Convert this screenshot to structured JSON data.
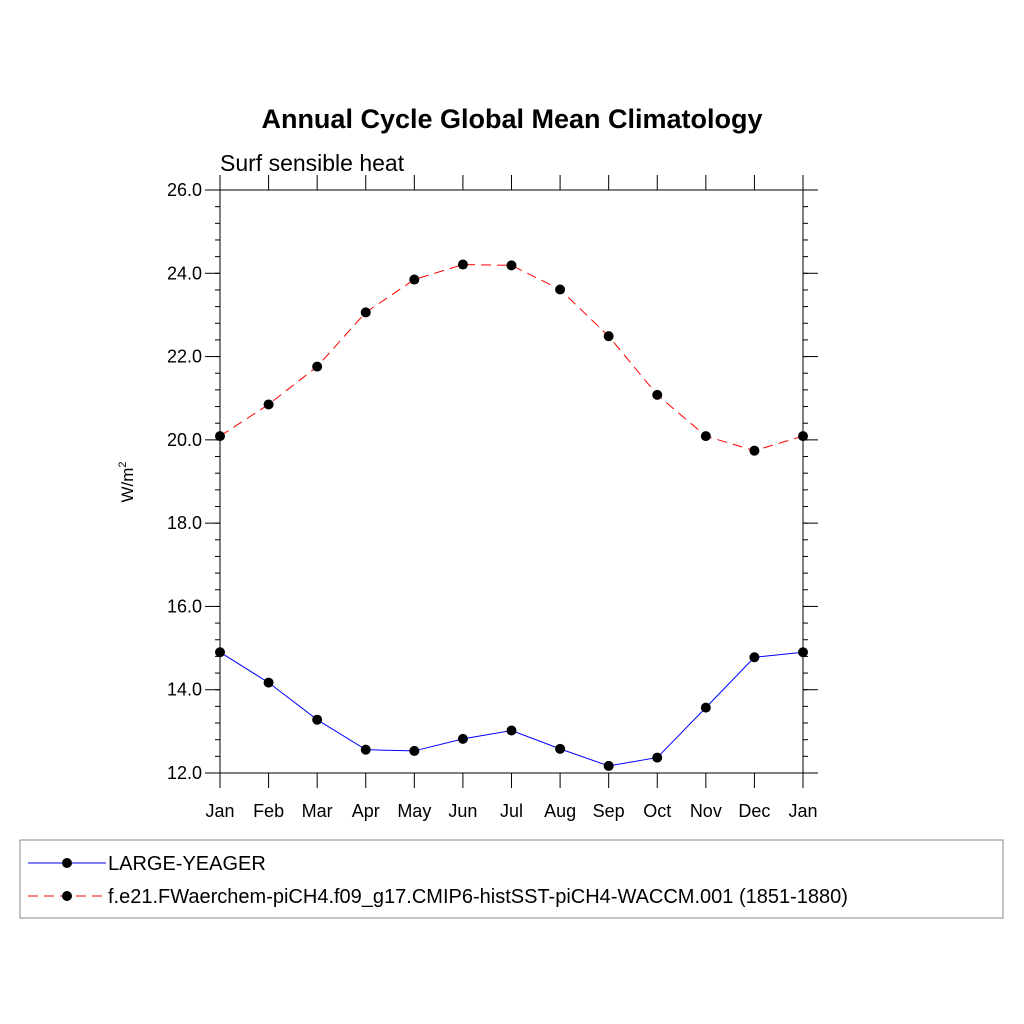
{
  "chart_data": {
    "type": "line",
    "title": "Annual Cycle Global Mean Climatology",
    "subtitle": "Surf sensible heat",
    "xlabel": "",
    "ylabel": "W/m",
    "ylabel_superscript": "2",
    "categories": [
      "Jan",
      "Feb",
      "Mar",
      "Apr",
      "May",
      "Jun",
      "Jul",
      "Aug",
      "Sep",
      "Oct",
      "Nov",
      "Dec",
      "Jan"
    ],
    "ylim": [
      12.0,
      26.0
    ],
    "y_major_ticks": [
      12.0,
      14.0,
      16.0,
      18.0,
      20.0,
      22.0,
      24.0,
      26.0
    ],
    "y_tick_labels": [
      "12.0",
      "14.0",
      "16.0",
      "18.0",
      "20.0",
      "22.0",
      "24.0",
      "26.0"
    ],
    "y_minor_step": 0.4,
    "grid": false,
    "legend_position": "bottom",
    "series": [
      {
        "name": "LARGE-YEAGER",
        "color": "#0000ff",
        "line_style": "solid",
        "marker": "filled-circle",
        "values": [
          14.9,
          14.17,
          13.28,
          12.56,
          12.53,
          12.82,
          13.02,
          12.58,
          12.17,
          12.37,
          13.57,
          14.78,
          14.9
        ]
      },
      {
        "name": "f.e21.FWaerchem-piCH4.f09_g17.CMIP6-histSST-piCH4-WACCM.001 (1851-1880)",
        "color": "#ff0000",
        "line_style": "dashed",
        "marker": "filled-circle",
        "values": [
          20.09,
          20.85,
          21.76,
          23.06,
          23.85,
          24.21,
          24.19,
          23.61,
          22.49,
          21.08,
          20.09,
          19.74,
          20.09
        ]
      }
    ]
  }
}
